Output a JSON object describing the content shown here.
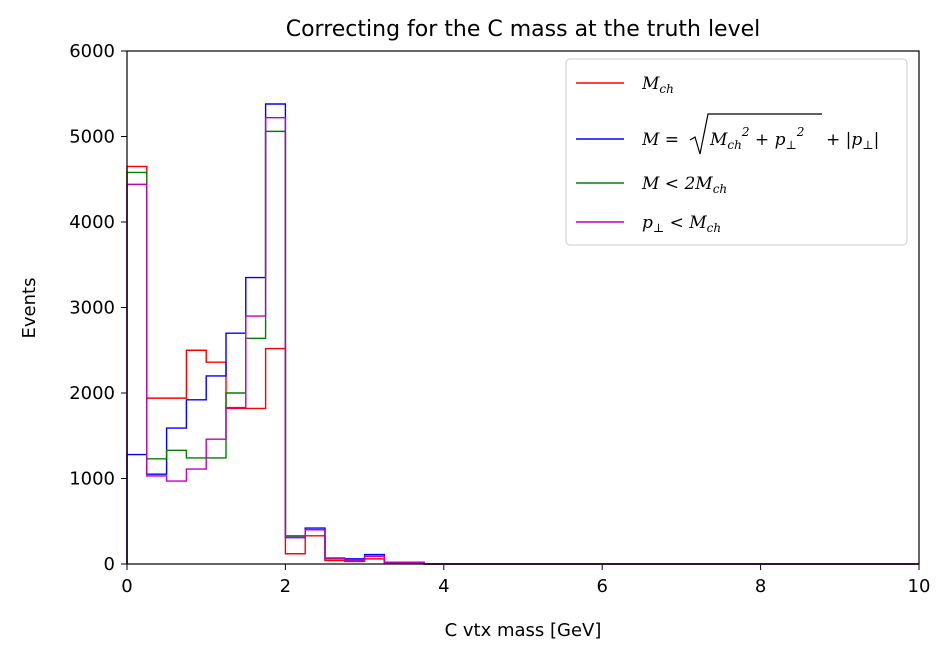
{
  "chart_data": {
    "type": "histogram",
    "title": "Correcting for the C mass at the truth level",
    "xlabel": "C vtx mass [GeV]",
    "ylabel": "Events",
    "xlim": [
      0,
      10
    ],
    "ylim": [
      0,
      6000
    ],
    "xticks": [
      0,
      2,
      4,
      6,
      8,
      10
    ],
    "yticks": [
      0,
      1000,
      2000,
      3000,
      4000,
      5000,
      6000
    ],
    "grid": false,
    "legend_position": "top-right",
    "bin_edges": [
      0,
      0.25,
      0.5,
      0.75,
      1.0,
      1.25,
      1.5,
      1.75,
      2.0,
      2.25,
      2.5,
      2.75,
      3.0,
      3.25,
      3.5,
      3.75,
      4.0,
      10.0
    ],
    "series": [
      {
        "name": "M_ch",
        "label": "M_ch",
        "color": "#ff0000",
        "values": [
          4650,
          1940,
          1940,
          2500,
          2360,
          1820,
          1820,
          2520,
          120,
          330,
          40,
          30,
          60,
          10,
          10,
          0,
          0
        ]
      },
      {
        "name": "M = sqrt(M_ch^2 + p_perp^2) + |p_perp|",
        "label": "M = sqrt(M_ch^2 + p_perp^2) + |p_perp|",
        "color": "#0000ff",
        "values": [
          1280,
          1050,
          1590,
          1920,
          2200,
          2700,
          3350,
          5380,
          310,
          420,
          70,
          60,
          110,
          20,
          20,
          0,
          0
        ]
      },
      {
        "name": "M < 2M_ch",
        "label": "M < 2M_ch",
        "color": "#008000",
        "values": [
          4580,
          1230,
          1330,
          1240,
          1240,
          2000,
          2640,
          5060,
          330,
          400,
          70,
          50,
          90,
          20,
          20,
          0,
          0
        ]
      },
      {
        "name": "p_perp < M_ch",
        "label": "p_perp < M_ch",
        "color": "#bf00bf",
        "values": [
          4440,
          1030,
          970,
          1110,
          1460,
          1830,
          2900,
          5220,
          310,
          400,
          60,
          40,
          90,
          20,
          20,
          0,
          0
        ]
      }
    ]
  }
}
